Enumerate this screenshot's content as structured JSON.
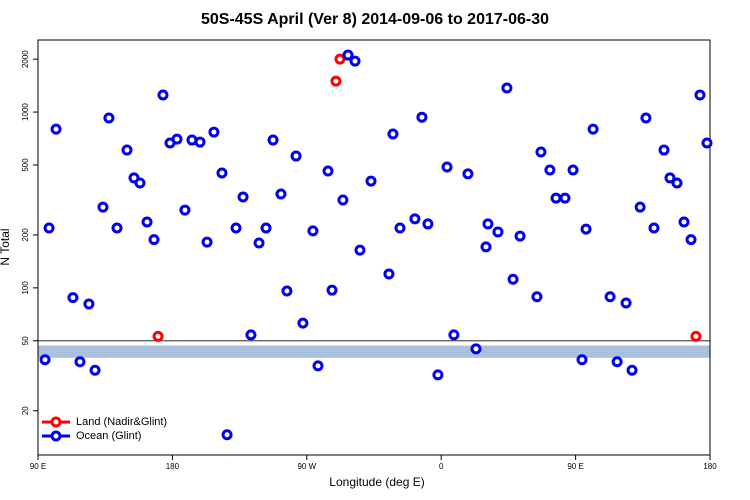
{
  "chart_data": {
    "type": "scatter",
    "title": "50S-45S April (Ver 8)   2014-09-06 to 2017-06-30",
    "x_label": "Longitude (deg E)",
    "y_label": "N Total",
    "log_y": true,
    "legend": "bottom-left",
    "xlim": [
      90,
      540
    ],
    "xticks": [
      {
        "value": 90,
        "label": "90 E"
      },
      {
        "value": 180,
        "label": "180"
      },
      {
        "value": 270,
        "label": "90 W"
      },
      {
        "value": 360,
        "label": "0"
      },
      {
        "value": 450,
        "label": "90 E"
      },
      {
        "value": 540,
        "label": "180"
      }
    ],
    "ylim": [
      11.2,
      2570
    ],
    "yticks": [
      20,
      50,
      100,
      200,
      500,
      1000,
      2000
    ],
    "hline": 50,
    "band": {
      "range": [
        40,
        47
      ],
      "color": "#a9c1df"
    },
    "series": [
      {
        "name": "Land (Nadir&Glint)",
        "color": "#ff0000",
        "x": [
          170.4,
          289.5,
          292.2,
          530.6
        ],
        "values": [
          53,
          1500,
          2000,
          53
        ]
      },
      {
        "name": "Ocean (Glint)",
        "color": "#0000ee",
        "x": [
          94.7,
          97.4,
          102.1,
          113.4,
          118.1,
          124.1,
          128.2,
          133.5,
          137.5,
          142.9,
          149.6,
          154.3,
          158.3,
          163,
          167.7,
          173.7,
          178.4,
          183.1,
          188.4,
          193.1,
          198.5,
          203.2,
          207.8,
          213.2,
          216.6,
          222.6,
          227.3,
          232.6,
          238,
          242.7,
          247.4,
          252.7,
          256.7,
          262.8,
          267.4,
          274.1,
          277.5,
          284.2,
          286.9,
          294.2,
          297.6,
          302.3,
          305.6,
          313,
          325,
          327.7,
          332.4,
          342.4,
          347.1,
          351.1,
          357.8,
          363.9,
          368.5,
          377.9,
          383.3,
          390,
          391.3,
          398,
          404,
          408.1,
          412.8,
          424.1,
          426.8,
          432.8,
          436.9,
          442.9,
          448.3,
          454.3,
          457,
          461.7,
          473.1,
          477.8,
          483.8,
          487.8,
          493.2,
          497.1,
          502.5,
          509.2,
          513.2,
          517.9,
          522.6,
          527.3,
          533.3,
          538
        ],
        "values": [
          39,
          219,
          800,
          88,
          38,
          81,
          34,
          288,
          925,
          219,
          608,
          422,
          395,
          237,
          188,
          1250,
          667,
          702,
          277,
          693,
          675,
          182,
          769,
          450,
          14.6,
          219,
          329,
          54,
          180,
          219,
          693,
          342,
          96,
          562,
          63,
          211,
          36,
          462,
          97,
          316,
          2110,
          1950,
          164,
          405,
          120,
          750,
          219,
          247,
          935,
          231,
          32,
          487,
          54,
          445,
          45,
          171,
          231,
          208,
          1370,
          112,
          197,
          89,
          593,
          468,
          324,
          324,
          468,
          39,
          216,
          800,
          89,
          38,
          82,
          34,
          288,
          925,
          219,
          608,
          422,
          395,
          237,
          188,
          1250,
          667
        ]
      }
    ]
  }
}
